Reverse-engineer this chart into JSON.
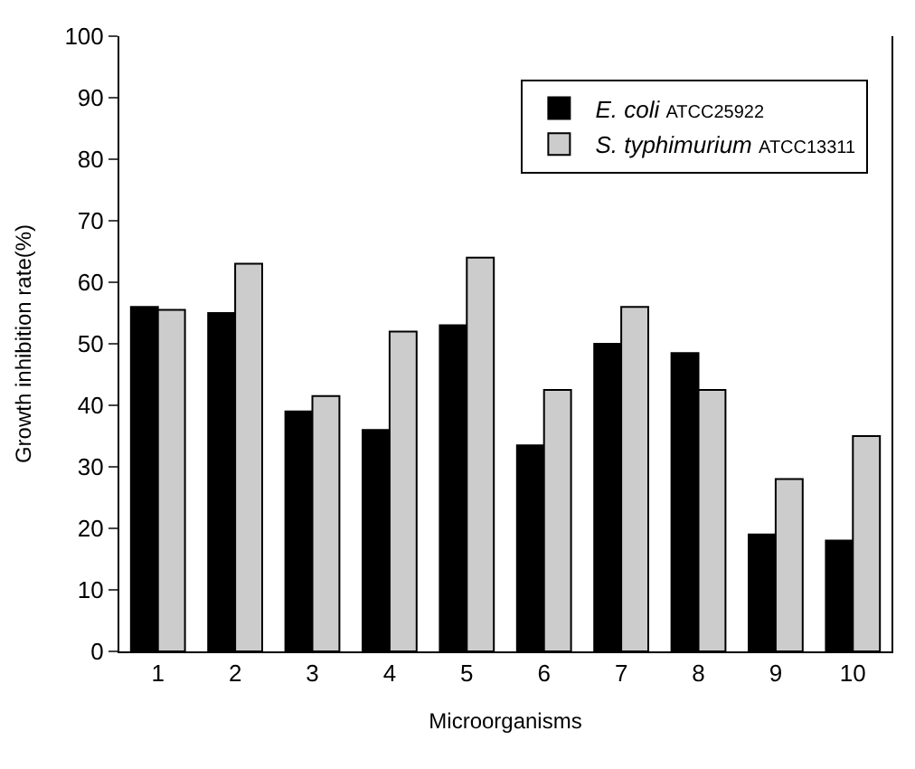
{
  "chart_data": {
    "type": "bar",
    "xlabel": "Microorganisms",
    "ylabel": "Growth inhibition rate(%)",
    "categories": [
      "1",
      "2",
      "3",
      "4",
      "5",
      "6",
      "7",
      "8",
      "9",
      "10"
    ],
    "series": [
      {
        "name": "E. coli ATCC25922",
        "color": "#000000",
        "values": [
          56,
          55,
          39,
          36,
          53,
          33.5,
          50,
          48.5,
          19,
          18
        ]
      },
      {
        "name": "S. typhimurium ATCC13311",
        "color": "#cccccc",
        "values": [
          55.5,
          63,
          41.5,
          52,
          64,
          42.5,
          56,
          42.5,
          28,
          35
        ]
      }
    ],
    "ylim": [
      0,
      100
    ],
    "yticks": [
      0,
      10,
      20,
      30,
      40,
      50,
      60,
      70,
      80,
      90,
      100
    ],
    "legend": "top right"
  }
}
